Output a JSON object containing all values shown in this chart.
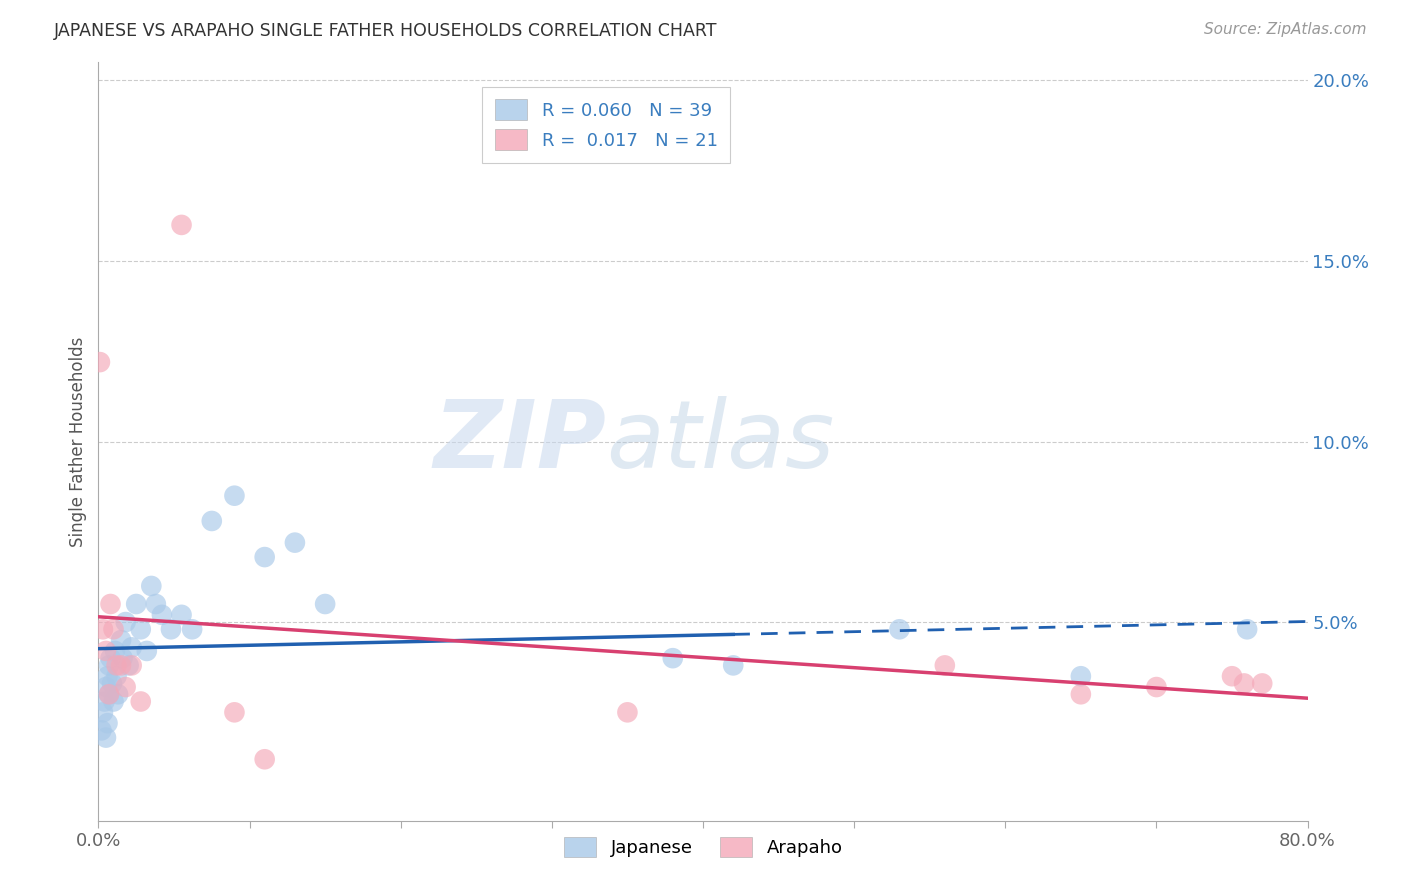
{
  "title": "JAPANESE VS ARAPAHO SINGLE FATHER HOUSEHOLDS CORRELATION CHART",
  "source": "Source: ZipAtlas.com",
  "ylabel": "Single Father Households",
  "xlim": [
    0,
    0.8
  ],
  "ylim": [
    -0.005,
    0.205
  ],
  "yticks": [
    0.0,
    0.05,
    0.1,
    0.15,
    0.2
  ],
  "ytick_labels": [
    "",
    "5.0%",
    "10.0%",
    "15.0%",
    "20.0%"
  ],
  "xticks": [
    0.0,
    0.1,
    0.2,
    0.3,
    0.4,
    0.5,
    0.6,
    0.7,
    0.8
  ],
  "xtick_labels": [
    "0.0%",
    "",
    "",
    "",
    "",
    "",
    "",
    "",
    "80.0%"
  ],
  "japanese_R": "0.060",
  "japanese_N": "39",
  "arapaho_R": "0.017",
  "arapaho_N": "21",
  "japanese_color": "#a8c8e8",
  "arapaho_color": "#f4a8b8",
  "japanese_line_color": "#2060b0",
  "arapaho_line_color": "#d84070",
  "watermark_zip": "ZIP",
  "watermark_atlas": "atlas",
  "background_color": "#ffffff",
  "japanese_x": [
    0.002,
    0.003,
    0.004,
    0.005,
    0.005,
    0.006,
    0.006,
    0.007,
    0.007,
    0.008,
    0.009,
    0.01,
    0.011,
    0.012,
    0.013,
    0.015,
    0.016,
    0.018,
    0.02,
    0.022,
    0.025,
    0.028,
    0.032,
    0.035,
    0.038,
    0.042,
    0.048,
    0.055,
    0.062,
    0.075,
    0.09,
    0.11,
    0.13,
    0.15,
    0.38,
    0.42,
    0.53,
    0.65,
    0.76
  ],
  "japanese_y": [
    0.02,
    0.025,
    0.028,
    0.032,
    0.018,
    0.035,
    0.022,
    0.038,
    0.03,
    0.04,
    0.033,
    0.028,
    0.042,
    0.035,
    0.03,
    0.045,
    0.04,
    0.05,
    0.038,
    0.043,
    0.055,
    0.048,
    0.042,
    0.06,
    0.055,
    0.052,
    0.048,
    0.052,
    0.048,
    0.078,
    0.085,
    0.068,
    0.072,
    0.055,
    0.04,
    0.038,
    0.048,
    0.035,
    0.048
  ],
  "arapaho_x": [
    0.001,
    0.003,
    0.005,
    0.007,
    0.008,
    0.01,
    0.012,
    0.015,
    0.018,
    0.022,
    0.028,
    0.055,
    0.09,
    0.11,
    0.35,
    0.56,
    0.65,
    0.7,
    0.75,
    0.758,
    0.77
  ],
  "arapaho_y": [
    0.122,
    0.048,
    0.042,
    0.03,
    0.055,
    0.048,
    0.038,
    0.038,
    0.032,
    0.038,
    0.028,
    0.16,
    0.025,
    0.012,
    0.025,
    0.038,
    0.03,
    0.032,
    0.035,
    0.033,
    0.033
  ]
}
